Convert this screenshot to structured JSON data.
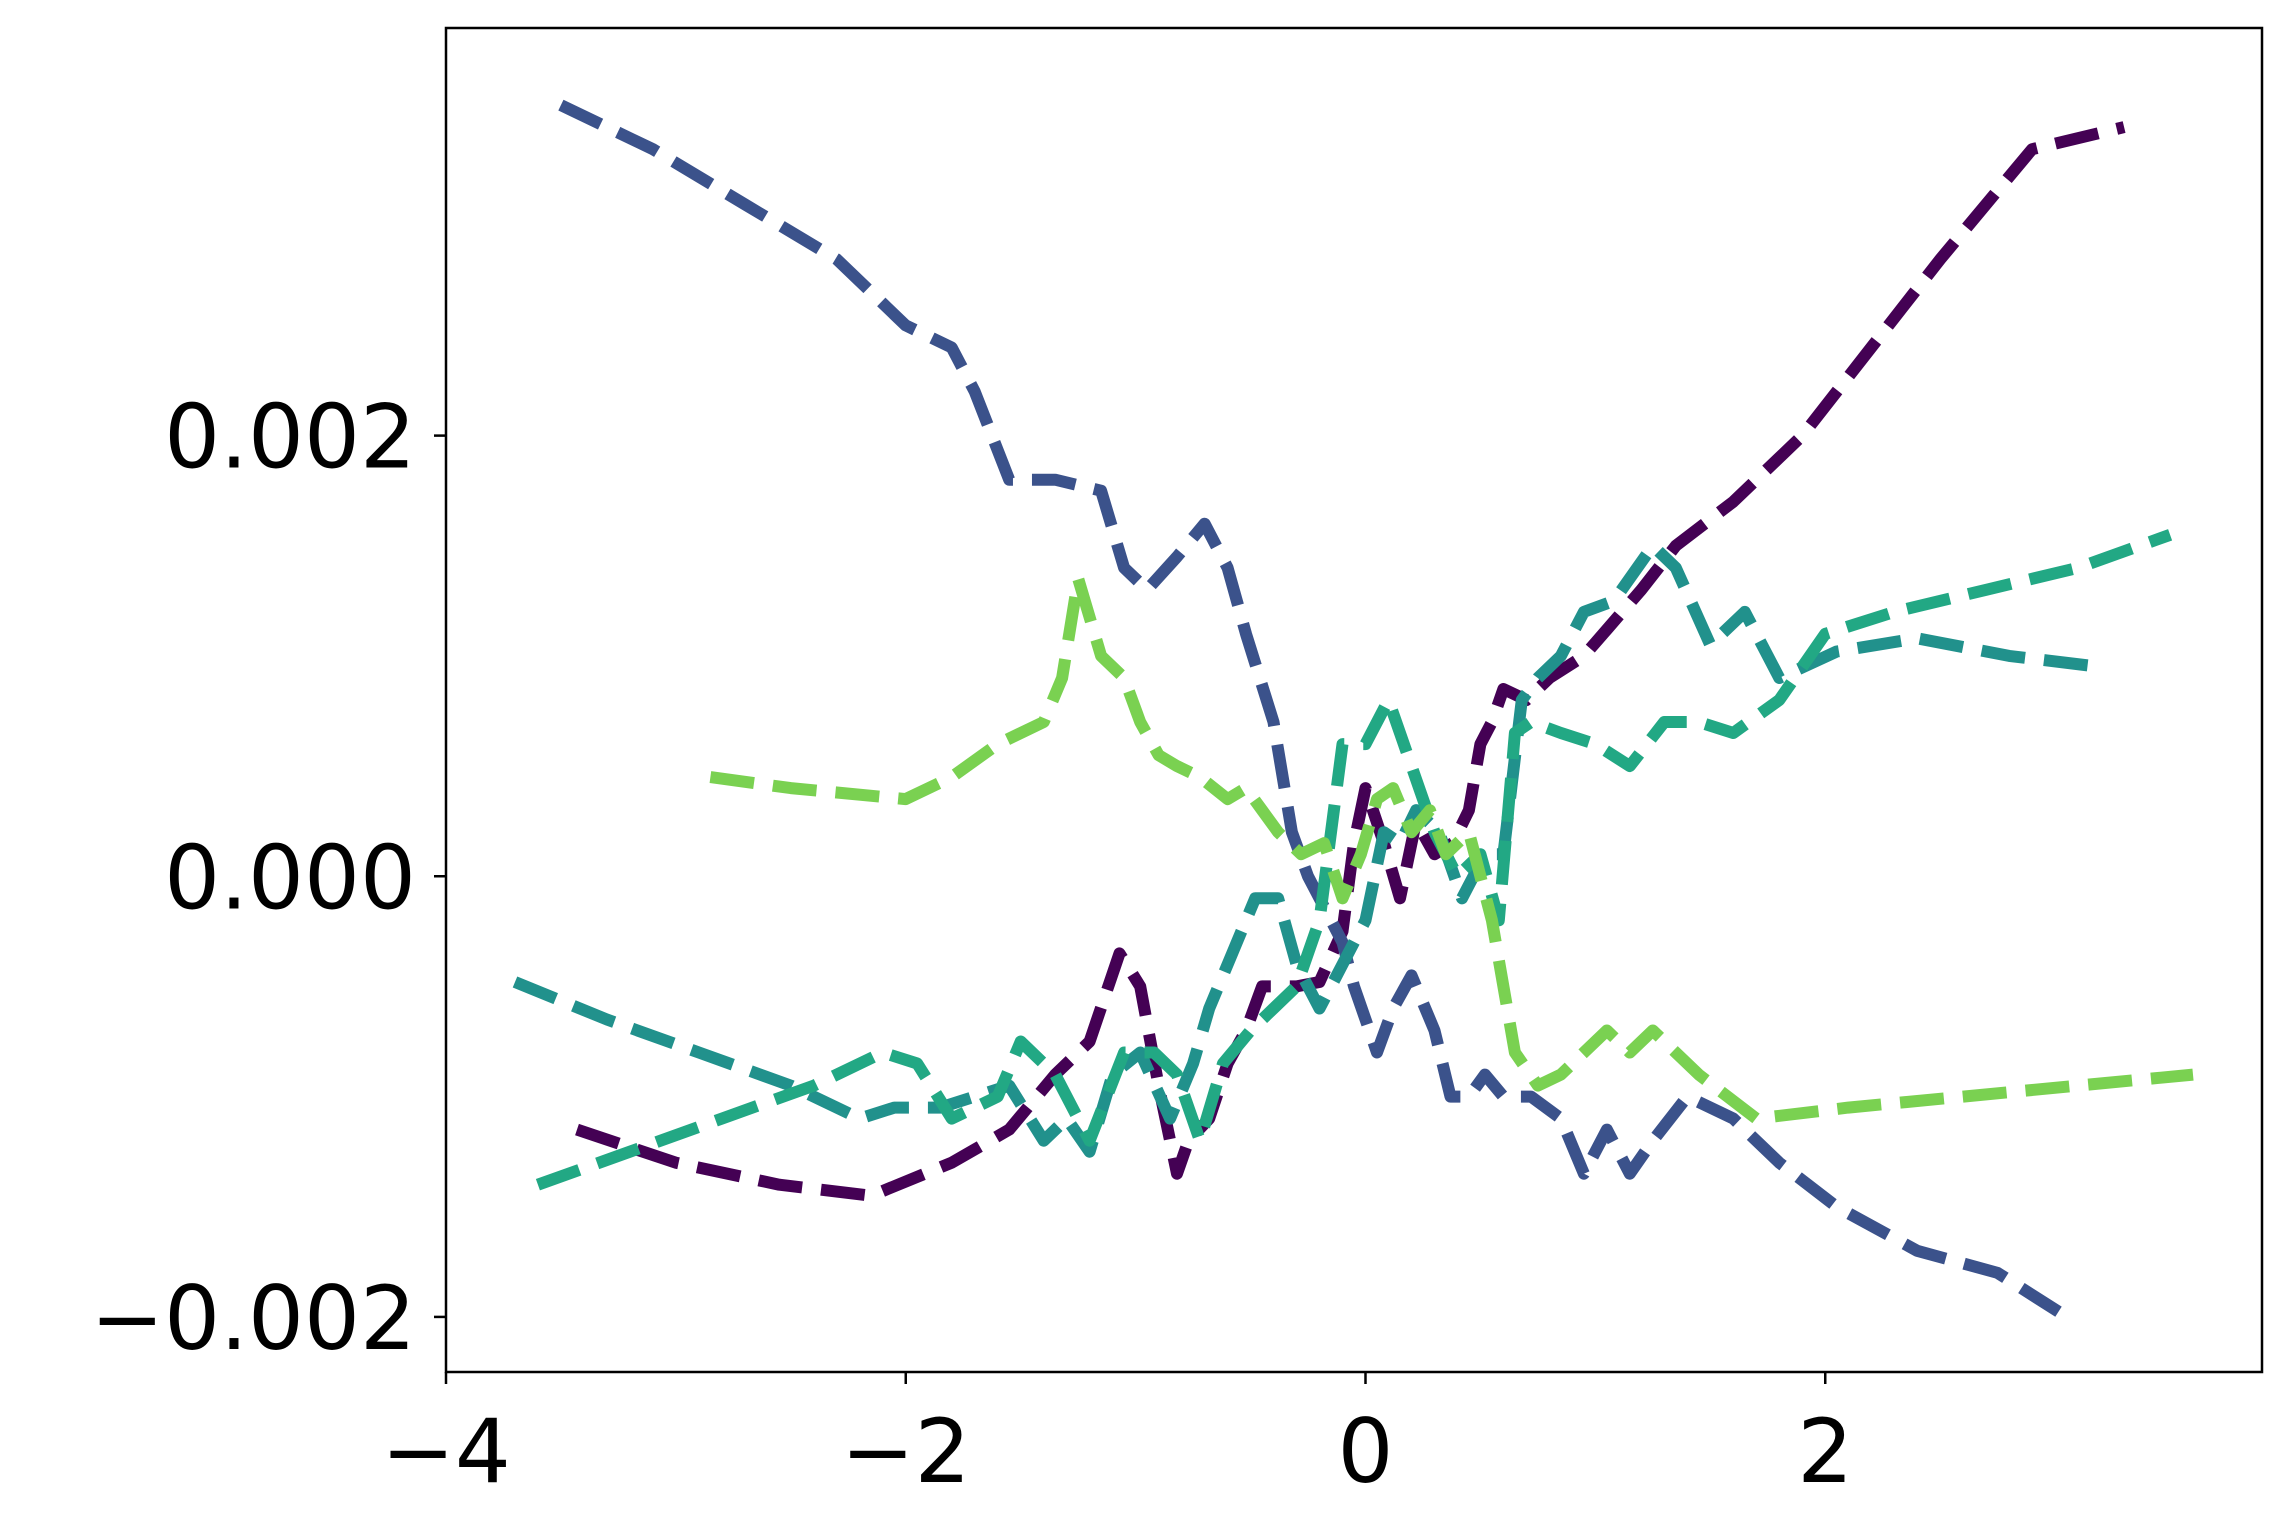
{
  "chart_data": {
    "type": "line",
    "title": "",
    "xlabel": "",
    "ylabel": "",
    "xlim": [
      -4.0,
      3.9
    ],
    "ylim": [
      -0.00225,
      0.00385
    ],
    "grid": false,
    "legend": "none",
    "line_style": "dashed",
    "x_ticks": [
      {
        "value": -4,
        "label": "−4"
      },
      {
        "value": -2,
        "label": "−2"
      },
      {
        "value": 0,
        "label": "0"
      },
      {
        "value": 2,
        "label": "2"
      }
    ],
    "y_ticks": [
      {
        "value": 0.002,
        "label": "0.002"
      },
      {
        "value": 0.0,
        "label": "0.000"
      },
      {
        "value": -0.002,
        "label": "−0.002"
      }
    ],
    "series": [
      {
        "color": "#440154",
        "x": [
          -3.43,
          -3.0,
          -2.55,
          -2.15,
          -1.8,
          -1.55,
          -1.35,
          -1.2,
          -1.07,
          -0.98,
          -0.9,
          -0.82,
          -0.77,
          -0.68,
          -0.6,
          -0.52,
          -0.45,
          -0.3,
          -0.2,
          -0.1,
          -0.05,
          0.0,
          0.08,
          0.15,
          0.22,
          0.3,
          0.38,
          0.45,
          0.5,
          0.55,
          0.6,
          0.7,
          0.8,
          0.95,
          1.05,
          1.2,
          1.35,
          1.6,
          1.9,
          2.2,
          2.5,
          2.9,
          3.3
        ],
        "y": [
          -0.00115,
          -0.0013,
          -0.0014,
          -0.00145,
          -0.0013,
          -0.00115,
          -0.0009,
          -0.00075,
          -0.00035,
          -0.0005,
          -0.00095,
          -0.00135,
          -0.0012,
          -0.0011,
          -0.00085,
          -0.0007,
          -0.0005,
          -0.0005,
          -0.00048,
          -0.00025,
          0.00015,
          0.0004,
          0.00015,
          -0.0001,
          0.00025,
          0.0001,
          0.00015,
          0.0003,
          0.0006,
          0.0007,
          0.00085,
          0.0008,
          0.0009,
          0.001,
          0.00112,
          0.0013,
          0.0015,
          0.0017,
          0.002,
          0.0024,
          0.0028,
          0.0033,
          0.0034
        ]
      },
      {
        "color": "#3b528b",
        "x": [
          -3.5,
          -3.1,
          -2.7,
          -2.3,
          -2.0,
          -1.8,
          -1.7,
          -1.55,
          -1.35,
          -1.15,
          -1.05,
          -0.95,
          -0.82,
          -0.7,
          -0.6,
          -0.52,
          -0.4,
          -0.32,
          -0.25,
          -0.15,
          -0.1,
          -0.05,
          0.05,
          0.12,
          0.2,
          0.3,
          0.37,
          0.45,
          0.52,
          0.6,
          0.72,
          0.85,
          0.95,
          1.05,
          1.15,
          1.25,
          1.4,
          1.6,
          1.8,
          2.05,
          2.4,
          2.75,
          3.05
        ],
        "y": [
          0.0035,
          0.0033,
          0.00305,
          0.0028,
          0.0025,
          0.0024,
          0.0022,
          0.0018,
          0.0018,
          0.00175,
          0.0014,
          0.0013,
          0.00145,
          0.0016,
          0.0014,
          0.0011,
          0.0007,
          0.0002,
          0.0,
          -0.0002,
          -0.0003,
          -0.0005,
          -0.0008,
          -0.0006,
          -0.00045,
          -0.0007,
          -0.001,
          -0.001,
          -0.0009,
          -0.001,
          -0.001,
          -0.0011,
          -0.00135,
          -0.00115,
          -0.00135,
          -0.0012,
          -0.001,
          -0.0011,
          -0.0013,
          -0.0015,
          -0.0017,
          -0.0018,
          -0.002
        ]
      },
      {
        "color": "#21918c",
        "x": [
          -3.7,
          -3.3,
          -2.9,
          -2.5,
          -2.2,
          -2.05,
          -1.85,
          -1.7,
          -1.55,
          -1.4,
          -1.3,
          -1.2,
          -1.1,
          -0.98,
          -0.85,
          -0.75,
          -0.68,
          -0.58,
          -0.48,
          -0.38,
          -0.3,
          -0.2,
          -0.1,
          0.0,
          0.08,
          0.15,
          0.22,
          0.32,
          0.42,
          0.52,
          0.6,
          0.68,
          0.75,
          0.85,
          0.95,
          1.08,
          1.25,
          1.35,
          1.5,
          1.65,
          1.8,
          2.05,
          2.4,
          2.8,
          3.2
        ],
        "y": [
          -0.00048,
          -0.00065,
          -0.0008,
          -0.00095,
          -0.0011,
          -0.00105,
          -0.00105,
          -0.001,
          -0.00095,
          -0.0012,
          -0.0011,
          -0.00125,
          -0.0009,
          -0.0008,
          -0.0011,
          -0.00085,
          -0.0006,
          -0.00035,
          -0.0001,
          -0.0001,
          -0.0004,
          -0.0006,
          -0.0004,
          -0.0002,
          0.0002,
          0.00015,
          0.0003,
          0.0002,
          -0.0001,
          0.0001,
          0.0001,
          0.0008,
          0.0009,
          0.001,
          0.0012,
          0.00125,
          0.0015,
          0.0014,
          0.00105,
          0.0012,
          0.0009,
          0.00102,
          0.00108,
          0.001,
          0.00095
        ]
      },
      {
        "color": "#22a884",
        "x": [
          -3.6,
          -3.2,
          -2.8,
          -2.4,
          -2.1,
          -1.95,
          -1.8,
          -1.6,
          -1.5,
          -1.35,
          -1.2,
          -1.05,
          -0.92,
          -0.82,
          -0.72,
          -0.62,
          -0.5,
          -0.4,
          -0.3,
          -0.2,
          -0.1,
          0.0,
          0.1,
          0.2,
          0.3,
          0.4,
          0.5,
          0.58,
          0.65,
          0.72,
          0.85,
          1.0,
          1.15,
          1.3,
          1.45,
          1.6,
          1.8,
          2.0,
          2.3,
          2.7,
          3.1,
          3.5
        ],
        "y": [
          -0.0014,
          -0.00125,
          -0.0011,
          -0.00095,
          -0.0008,
          -0.00085,
          -0.0011,
          -0.001,
          -0.00075,
          -0.0009,
          -0.0012,
          -0.0008,
          -0.0008,
          -0.0009,
          -0.0012,
          -0.00085,
          -0.0007,
          -0.0006,
          -0.0005,
          -0.0002,
          0.0006,
          0.0006,
          0.0008,
          0.0005,
          0.0002,
          0.0,
          0.0001,
          -0.0002,
          0.00065,
          0.0007,
          0.00065,
          0.0006,
          0.0005,
          0.0007,
          0.0007,
          0.00065,
          0.0008,
          0.0011,
          0.0012,
          0.0013,
          0.0014,
          0.00155
        ]
      },
      {
        "color": "#7ad151",
        "x": [
          -2.85,
          -2.5,
          -2.0,
          -1.8,
          -1.6,
          -1.4,
          -1.32,
          -1.25,
          -1.15,
          -1.05,
          -0.98,
          -0.9,
          -0.82,
          -0.72,
          -0.6,
          -0.52,
          -0.45,
          -0.38,
          -0.28,
          -0.18,
          -0.1,
          -0.02,
          0.05,
          0.12,
          0.2,
          0.28,
          0.35,
          0.45,
          0.55,
          0.65,
          0.75,
          0.85,
          0.95,
          1.05,
          1.15,
          1.25,
          1.45,
          1.7,
          2.1,
          2.6,
          3.1,
          3.6
        ],
        "y": [
          0.00045,
          0.0004,
          0.00035,
          0.00045,
          0.0006,
          0.0007,
          0.0009,
          0.00135,
          0.001,
          0.0009,
          0.0007,
          0.00055,
          0.0005,
          0.00045,
          0.00035,
          0.0004,
          0.0003,
          0.0002,
          0.0001,
          0.00015,
          -0.0001,
          0.0001,
          0.00035,
          0.0004,
          0.0002,
          0.0003,
          0.0001,
          0.0002,
          -0.0002,
          -0.0008,
          -0.00095,
          -0.0009,
          -0.0008,
          -0.0007,
          -0.0008,
          -0.0007,
          -0.0009,
          -0.0011,
          -0.00105,
          -0.001,
          -0.00095,
          -0.0009
        ]
      }
    ]
  }
}
